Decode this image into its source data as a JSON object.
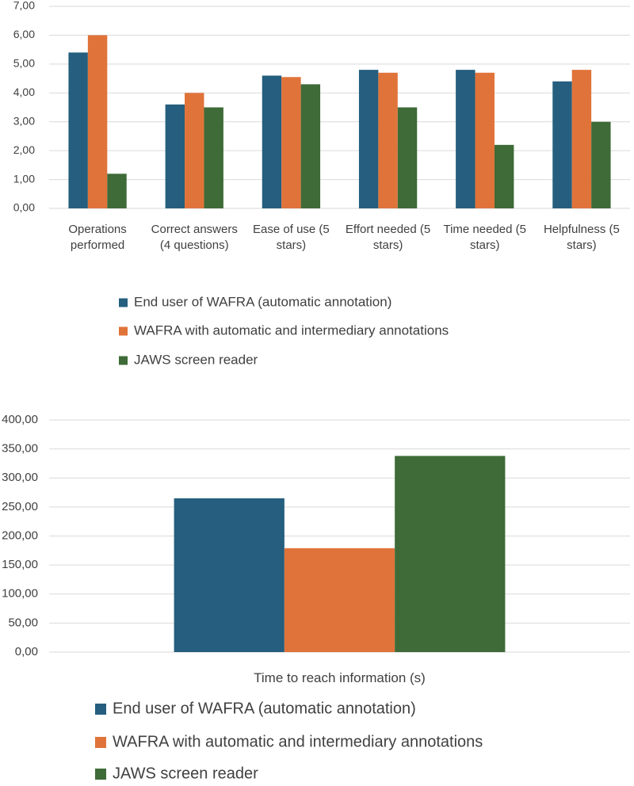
{
  "chart_data": [
    {
      "type": "bar",
      "categories": [
        "Operations performed",
        "Correct answers (4 questions)",
        "Ease of use (5 stars)",
        "Effort needed (5 stars)",
        "Time needed (5 stars)",
        "Helpfulness (5 stars)"
      ],
      "series": [
        {
          "name": "End user of WAFRA (automatic annotation)",
          "color": "#255e7e",
          "values": [
            5.4,
            3.6,
            4.6,
            4.8,
            4.8,
            4.4
          ]
        },
        {
          "name": "WAFRA with automatic and intermediary annotations",
          "color": "#e0733a",
          "values": [
            6.0,
            4.0,
            4.55,
            4.7,
            4.7,
            4.8
          ]
        },
        {
          "name": "JAWS screen reader",
          "color": "#3e6b37",
          "values": [
            1.2,
            3.5,
            4.3,
            3.5,
            2.2,
            3.0
          ]
        }
      ],
      "ylim": [
        0,
        7
      ],
      "yticks": [
        {
          "value": 0,
          "label": "0,00"
        },
        {
          "value": 1,
          "label": "1,00"
        },
        {
          "value": 2,
          "label": "2,00"
        },
        {
          "value": 3,
          "label": "3,00"
        },
        {
          "value": 4,
          "label": "4,00"
        },
        {
          "value": 5,
          "label": "5,00"
        },
        {
          "value": 6,
          "label": "6,00"
        },
        {
          "value": 7,
          "label": "7,00"
        }
      ],
      "grid": true
    },
    {
      "type": "bar",
      "categories": [
        "Time to reach information (s)"
      ],
      "series": [
        {
          "name": "End user of WAFRA (automatic annotation)",
          "color": "#255e7e",
          "values": [
            265
          ]
        },
        {
          "name": "WAFRA with automatic and intermediary annotations",
          "color": "#e0733a",
          "values": [
            179
          ]
        },
        {
          "name": "JAWS screen reader",
          "color": "#3e6b37",
          "values": [
            338
          ]
        }
      ],
      "ylim": [
        0,
        400
      ],
      "yticks": [
        {
          "value": 0,
          "label": "0,00"
        },
        {
          "value": 50,
          "label": "50,00"
        },
        {
          "value": 100,
          "label": "100,00"
        },
        {
          "value": 150,
          "label": "150,00"
        },
        {
          "value": 200,
          "label": "200,00"
        },
        {
          "value": 250,
          "label": "250,00"
        },
        {
          "value": 300,
          "label": "300,00"
        },
        {
          "value": 350,
          "label": "350,00"
        },
        {
          "value": 400,
          "label": "400,00"
        }
      ],
      "grid": true
    }
  ]
}
